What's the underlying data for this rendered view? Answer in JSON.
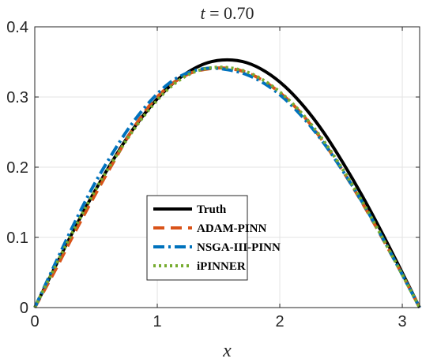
{
  "chart_data": {
    "type": "line",
    "title": "t = 0.70",
    "title_var": "t",
    "title_rest": " = 0.70",
    "xlabel": "x",
    "ylabel": "",
    "xlim": [
      0,
      3.1416
    ],
    "ylim": [
      0,
      0.4
    ],
    "xticks": [
      0,
      1,
      2,
      3
    ],
    "xtick_labels": [
      "0",
      "1",
      "2",
      "3"
    ],
    "yticks": [
      0,
      0.1,
      0.2,
      0.3,
      0.4
    ],
    "ytick_labels": [
      "0",
      "0.1",
      "0.2",
      "0.3",
      "0.4"
    ],
    "grid": true,
    "legend_position": "lower-center",
    "x": [
      0,
      0.1571,
      0.3142,
      0.4712,
      0.6283,
      0.7854,
      0.9425,
      1.0996,
      1.2566,
      1.4137,
      1.5708,
      1.7279,
      1.885,
      2.042,
      2.1991,
      2.3562,
      2.5133,
      2.6704,
      2.8274,
      2.9845,
      3.1416
    ],
    "series": [
      {
        "name": "Truth",
        "color": "#000000",
        "dash": "solid",
        "values": [
          0,
          0.055,
          0.109,
          0.16,
          0.207,
          0.25,
          0.286,
          0.315,
          0.336,
          0.349,
          0.353,
          0.349,
          0.336,
          0.315,
          0.286,
          0.25,
          0.207,
          0.16,
          0.109,
          0.055,
          0
        ]
      },
      {
        "name": "ADAM-PINN",
        "color": "#d95319",
        "dash": "dashed",
        "values": [
          0,
          0.05,
          0.103,
          0.154,
          0.203,
          0.25,
          0.289,
          0.316,
          0.333,
          0.34,
          0.341,
          0.335,
          0.321,
          0.3,
          0.272,
          0.236,
          0.195,
          0.15,
          0.102,
          0.052,
          0
        ]
      },
      {
        "name": "NSGA-III-PINN",
        "color": "#0072bd",
        "dash": "dashdot",
        "values": [
          0,
          0.059,
          0.117,
          0.171,
          0.218,
          0.26,
          0.294,
          0.32,
          0.335,
          0.341,
          0.339,
          0.332,
          0.318,
          0.297,
          0.269,
          0.235,
          0.195,
          0.151,
          0.103,
          0.052,
          0
        ]
      },
      {
        "name": "iPINNER",
        "color": "#77ac30",
        "dash": "dotted",
        "values": [
          0,
          0.055,
          0.109,
          0.16,
          0.206,
          0.248,
          0.284,
          0.313,
          0.332,
          0.341,
          0.342,
          0.336,
          0.322,
          0.301,
          0.273,
          0.238,
          0.197,
          0.152,
          0.103,
          0.052,
          0
        ]
      }
    ]
  }
}
